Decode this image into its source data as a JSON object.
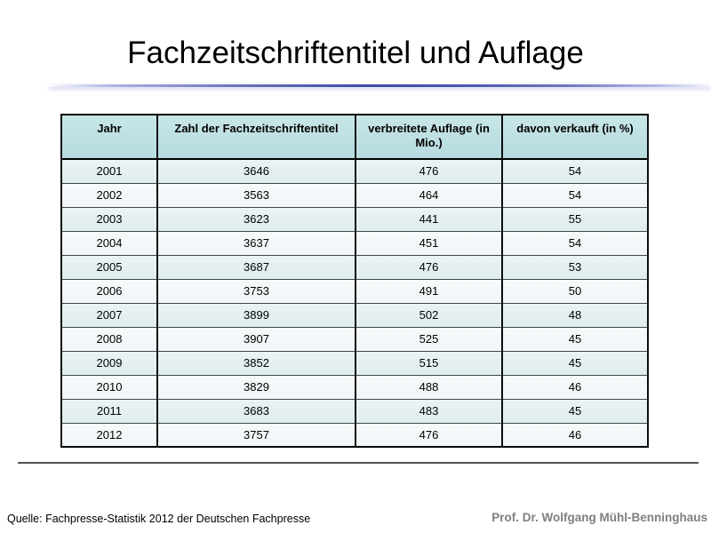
{
  "slide": {
    "title": "Fachzeitschriftentitel und Auflage",
    "source_note": "Quelle: Fachpresse-Statistik 2012 der Deutschen Fachpresse",
    "author": "Prof. Dr. Wolfgang Mühl-Benninghaus"
  },
  "colors": {
    "header_bg": "#bfe0e3",
    "row_odd_bg": "#e6f0f2",
    "row_even_bg": "#f3f8f9",
    "accent_line_dark": "#3f4ba2",
    "divider": "#515151",
    "author_text": "#7f7f7f"
  },
  "chart_data": {
    "type": "table",
    "title": "Fachzeitschriftentitel und Auflage",
    "columns": [
      "Jahr",
      "Zahl der Fachzeitschriftentitel",
      "verbreitete Auflage (in Mio.)",
      "davon verkauft (in %)"
    ],
    "rows": [
      [
        "2001",
        "3646",
        "476",
        "54"
      ],
      [
        "2002",
        "3563",
        "464",
        "54"
      ],
      [
        "2003",
        "3623",
        "441",
        "55"
      ],
      [
        "2004",
        "3637",
        "451",
        "54"
      ],
      [
        "2005",
        "3687",
        "476",
        "53"
      ],
      [
        "2006",
        "3753",
        "491",
        "50"
      ],
      [
        "2007",
        "3899",
        "502",
        "48"
      ],
      [
        "2008",
        "3907",
        "525",
        "45"
      ],
      [
        "2009",
        "3852",
        "515",
        "45"
      ],
      [
        "2010",
        "3829",
        "488",
        "46"
      ],
      [
        "2011",
        "3683",
        "483",
        "45"
      ],
      [
        "2012",
        "3757",
        "476",
        "46"
      ]
    ]
  }
}
